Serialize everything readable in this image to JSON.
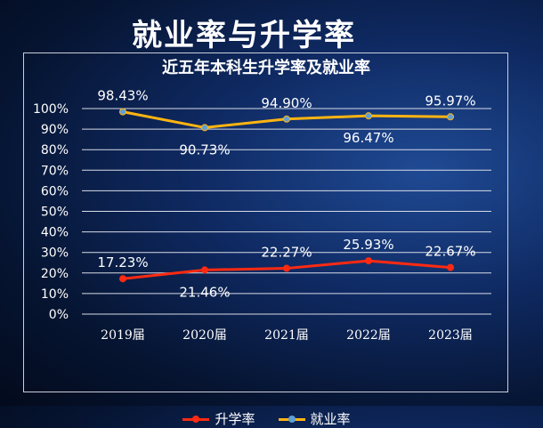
{
  "page": {
    "title": "就业率与升学率"
  },
  "chart_data": {
    "type": "line",
    "title": "近五年本科生升学率及就业率",
    "categories": [
      "2019届",
      "2020届",
      "2021届",
      "2022届",
      "2023届"
    ],
    "ylim": [
      0,
      100
    ],
    "yticks": [
      "0%",
      "10%",
      "20%",
      "30%",
      "40%",
      "50%",
      "60%",
      "70%",
      "80%",
      "90%",
      "100%"
    ],
    "grid": true,
    "legend_position": "bottom",
    "series": [
      {
        "name": "升学率",
        "color": "#ff2a12",
        "marker_color": "#ff2a12",
        "values": [
          17.23,
          21.46,
          22.27,
          25.93,
          22.67
        ],
        "labels": [
          "17.23%",
          "21.46%",
          "22.27%",
          "25.93%",
          "22.67%"
        ],
        "label_positions": [
          "above",
          "below",
          "above",
          "above",
          "above"
        ]
      },
      {
        "name": "就业率",
        "color": "#ffb411",
        "marker_color": "#5fa0d6",
        "values": [
          98.43,
          90.73,
          94.9,
          96.47,
          95.97
        ],
        "labels": [
          "98.43%",
          "90.73%",
          "94.90%",
          "96.47%",
          "95.97%"
        ],
        "label_positions": [
          "above",
          "below",
          "above",
          "below",
          "above"
        ]
      }
    ]
  }
}
